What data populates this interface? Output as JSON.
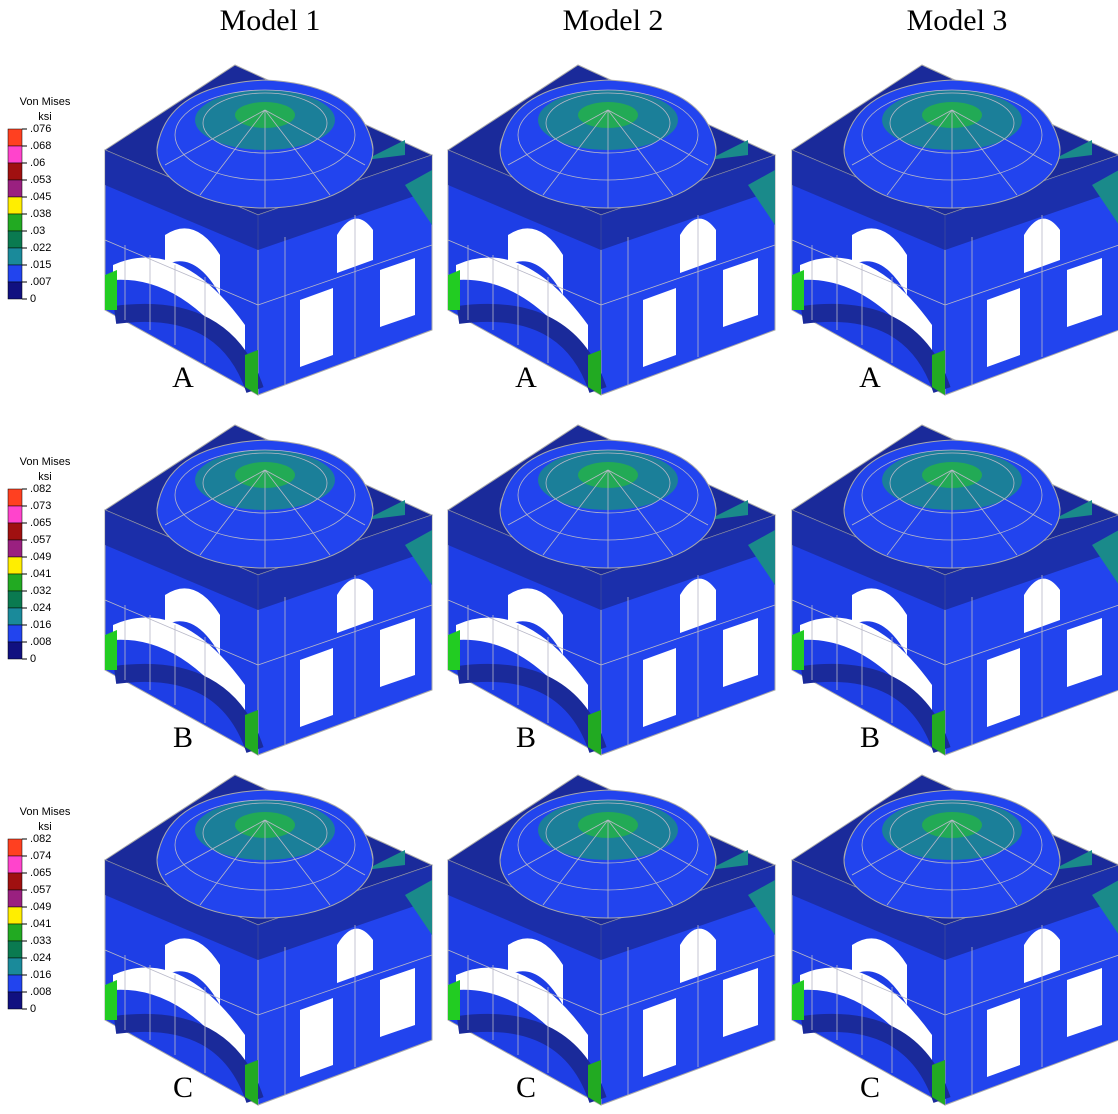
{
  "columns": [
    "Model 1",
    "Model 2",
    "Model 3"
  ],
  "rows": [
    {
      "panel_labels": [
        "A",
        "A",
        "A"
      ],
      "legend": {
        "title": "Von Mises",
        "unit": "ksi",
        "levels": [
          ".076",
          ".068",
          ".06",
          ".053",
          ".045",
          ".038",
          ".03",
          ".022",
          ".015",
          ".007",
          "0"
        ]
      }
    },
    {
      "panel_labels": [
        "B",
        "B",
        "B"
      ],
      "legend": {
        "title": "Von Mises",
        "unit": "ksi",
        "levels": [
          ".082",
          ".073",
          ".065",
          ".057",
          ".049",
          ".041",
          ".032",
          ".024",
          ".016",
          ".008",
          "0"
        ]
      }
    },
    {
      "panel_labels": [
        "C",
        "C",
        "C"
      ],
      "legend": {
        "title": "Von Mises",
        "unit": "ksi",
        "levels": [
          ".082",
          ".074",
          ".065",
          ".057",
          ".049",
          ".041",
          ".033",
          ".024",
          ".016",
          ".008",
          "0"
        ]
      }
    }
  ]
}
